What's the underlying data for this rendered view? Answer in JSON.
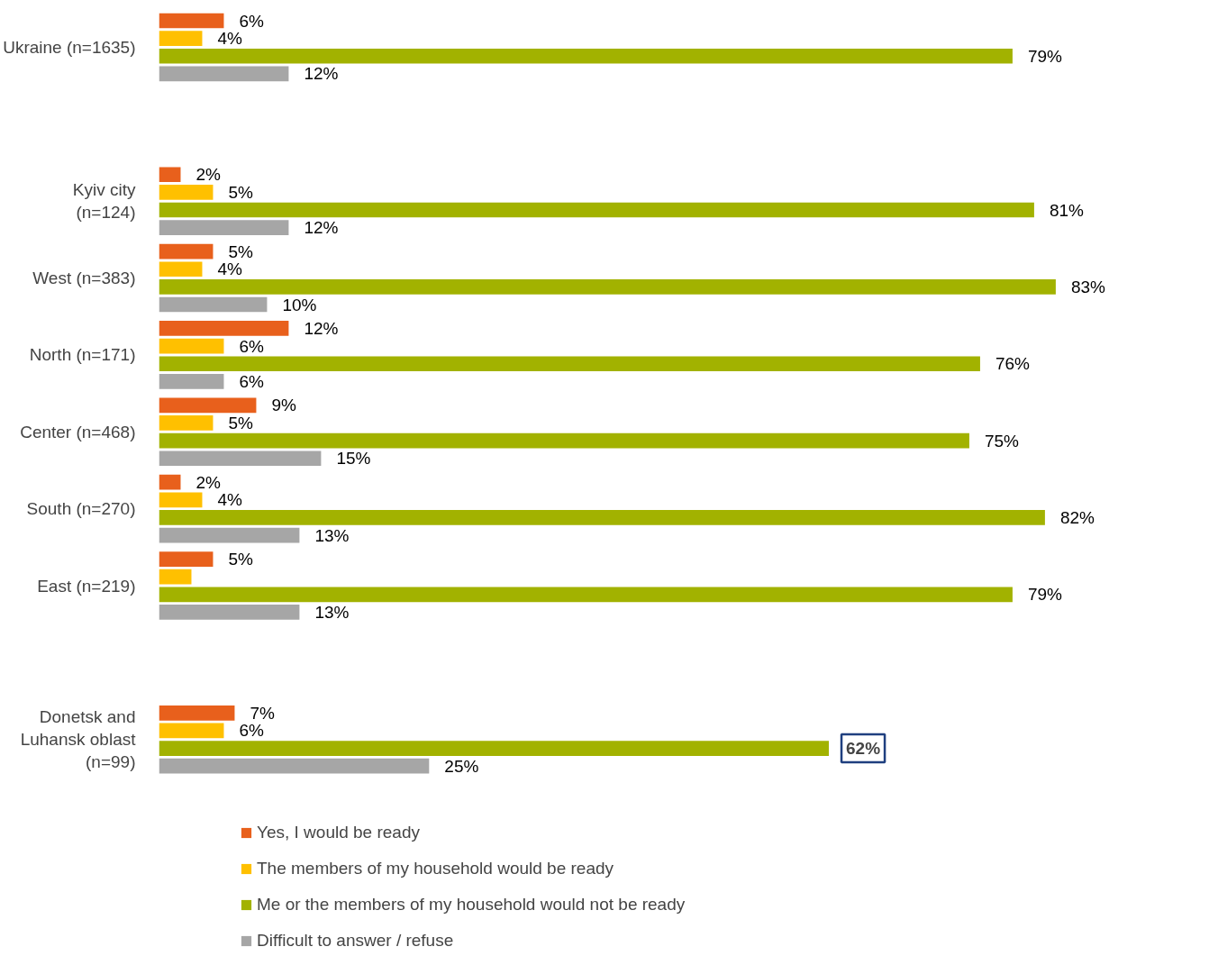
{
  "chart_data": {
    "type": "bar",
    "orientation": "horizontal",
    "categories": [
      "Ukraine (n=1635)",
      null,
      "Kyiv city   (n=124)",
      "West (n=383)",
      "North (n=171)",
      "Center (n=468)",
      "South (n=270)",
      "East (n=219)",
      null,
      "Donetsk and Luhansk oblast (n=99)"
    ],
    "series": [
      {
        "name": "Yes, I would be ready",
        "color": "#e8601c",
        "values": [
          6,
          null,
          2,
          5,
          12,
          9,
          2,
          5,
          null,
          7
        ],
        "value_labels": [
          "6%",
          null,
          "2%",
          "5%",
          "12%",
          "9%",
          "2%",
          "5%",
          null,
          "7%"
        ]
      },
      {
        "name": "The members of my household would be ready",
        "color": "#ffc000",
        "values": [
          4,
          null,
          5,
          4,
          6,
          5,
          4,
          3,
          null,
          6
        ],
        "value_labels": [
          "4%",
          null,
          "5%",
          "4%",
          "6%",
          "5%",
          "4%",
          null,
          null,
          "6%"
        ]
      },
      {
        "name": "Me or the members of my household would not be ready",
        "color": "#a2b200",
        "values": [
          79,
          null,
          81,
          83,
          76,
          75,
          82,
          79,
          null,
          62
        ],
        "value_labels": [
          "79%",
          null,
          "81%",
          "83%",
          "76%",
          "75%",
          "82%",
          "79%",
          null,
          null
        ]
      },
      {
        "name": "Difficult to answer / refuse",
        "color": "#a6a6a6",
        "values": [
          12,
          null,
          12,
          10,
          6,
          15,
          13,
          13,
          null,
          25
        ],
        "value_labels": [
          "12%",
          null,
          "12%",
          "10%",
          "6%",
          "15%",
          "13%",
          "13%",
          null,
          "25%"
        ]
      }
    ],
    "annotations": [
      {
        "text": "62%",
        "x": 62,
        "y": "Donetsk and Luhansk oblast (n=99)"
      }
    ],
    "legend": "bottom",
    "grid": false
  }
}
